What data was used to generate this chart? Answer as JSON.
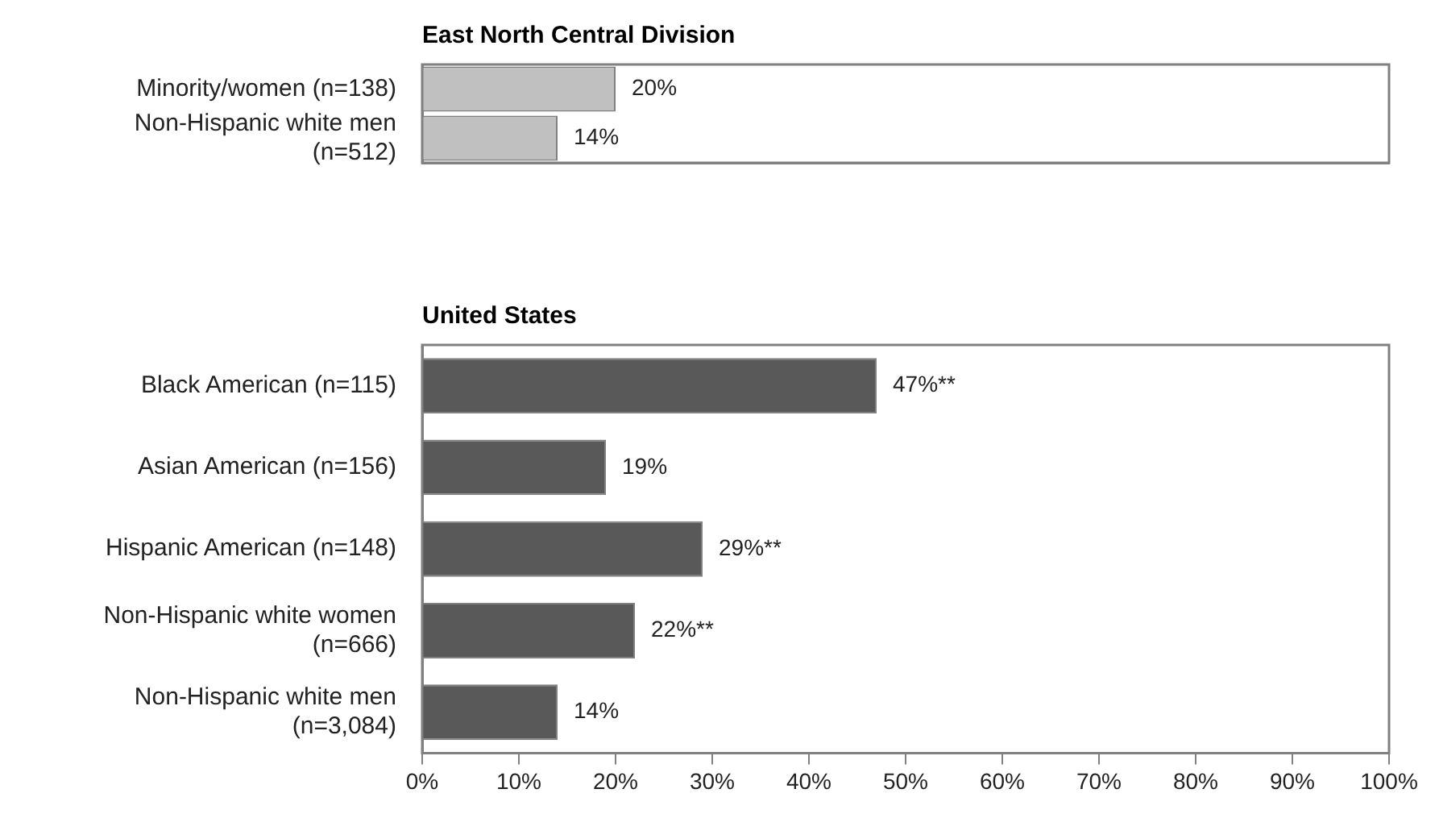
{
  "chart_data": [
    {
      "type": "bar",
      "orientation": "horizontal",
      "title": "East North Central Division",
      "categories": [
        "Minority/women (n=138)",
        "Non-Hispanic white men (n=512)"
      ],
      "series": [
        {
          "color": "#c0c0c0",
          "values": [
            20,
            14
          ],
          "value_labels": [
            "20%",
            "14%"
          ]
        }
      ],
      "xlim": [
        0,
        100
      ],
      "tick_labels": "y",
      "grid": false,
      "legend": false
    },
    {
      "type": "bar",
      "orientation": "horizontal",
      "title": "United States",
      "categories": [
        "Black American (n=115)",
        "Asian American (n=156)",
        "Hispanic American (n=148)",
        "Non-Hispanic white women (n=666)",
        "Non-Hispanic white men (n=3,084)"
      ],
      "series": [
        {
          "color": "#595959",
          "values": [
            47,
            19,
            29,
            22,
            14
          ],
          "value_labels": [
            "47%**",
            "19%",
            "29%**",
            "22%**",
            "14%"
          ]
        }
      ],
      "xlim": [
        0,
        100
      ],
      "xticks": [
        {
          "value": 0,
          "label": "0%"
        },
        {
          "value": 10,
          "label": "10%"
        },
        {
          "value": 20,
          "label": "20%"
        },
        {
          "value": 30,
          "label": "30%"
        },
        {
          "value": 40,
          "label": "40%"
        },
        {
          "value": 50,
          "label": "50%"
        },
        {
          "value": 60,
          "label": "60%"
        },
        {
          "value": 70,
          "label": "70%"
        },
        {
          "value": 80,
          "label": "80%"
        },
        {
          "value": 90,
          "label": "90%"
        },
        {
          "value": 100,
          "label": "100%"
        }
      ],
      "grid": false,
      "legend": false
    }
  ]
}
